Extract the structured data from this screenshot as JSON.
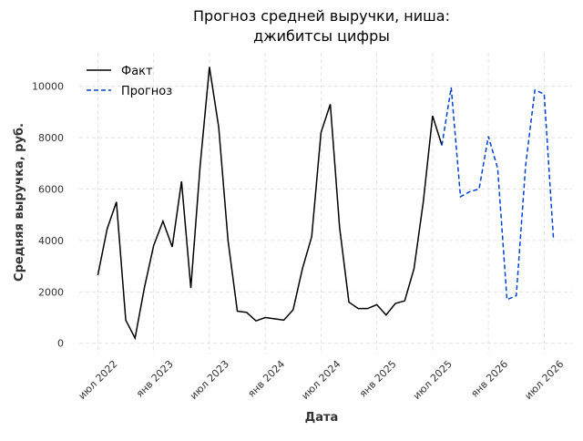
{
  "chart_data": {
    "type": "line",
    "title": [
      "Прогноз средней выручки, ниша:",
      "джибитсы цифры"
    ],
    "x_label": "Дата",
    "y_label": "Средняя выручка, руб.",
    "x": [
      "2022-07",
      "2022-08",
      "2022-09",
      "2022-10",
      "2022-11",
      "2022-12",
      "2023-01",
      "2023-02",
      "2023-03",
      "2023-04",
      "2023-05",
      "2023-06",
      "2023-07",
      "2023-08",
      "2023-09",
      "2023-10",
      "2023-11",
      "2023-12",
      "2024-01",
      "2024-02",
      "2024-03",
      "2024-04",
      "2024-05",
      "2024-06",
      "2024-07",
      "2024-08",
      "2024-09",
      "2024-10",
      "2024-11",
      "2024-12",
      "2025-01",
      "2025-02",
      "2025-03",
      "2025-04",
      "2025-05",
      "2025-06",
      "2025-07",
      "2025-08",
      "2025-09",
      "2025-10",
      "2025-11",
      "2025-12",
      "2026-01",
      "2026-02",
      "2026-03",
      "2026-04",
      "2026-05",
      "2026-06",
      "2026-07",
      "2026-08"
    ],
    "series": [
      {
        "name": "Факт",
        "color": "#000000",
        "dash": false,
        "values": [
          2650,
          4450,
          5500,
          900,
          200,
          2150,
          3800,
          4750,
          3750,
          6300,
          2150,
          6900,
          10750,
          8400,
          4000,
          1250,
          1200,
          870,
          1000,
          950,
          900,
          1300,
          2900,
          4150,
          8200,
          9300,
          4500,
          1600,
          1350,
          1350,
          1500,
          1100,
          1550,
          1650,
          2900,
          5500,
          8850,
          7700,
          null,
          null,
          null,
          null,
          null,
          null,
          null,
          null,
          null,
          null,
          null,
          null
        ]
      },
      {
        "name": "Прогноз",
        "color": "#0044cc",
        "dash": true,
        "values": [
          null,
          null,
          null,
          null,
          null,
          null,
          null,
          null,
          null,
          null,
          null,
          null,
          null,
          null,
          null,
          null,
          null,
          null,
          null,
          null,
          null,
          null,
          null,
          null,
          null,
          null,
          null,
          null,
          null,
          null,
          null,
          null,
          null,
          null,
          null,
          null,
          null,
          7700,
          9950,
          5700,
          5900,
          6000,
          8050,
          6800,
          1700,
          1850,
          6900,
          9850,
          9700,
          4050
        ]
      }
    ],
    "xlim": [
      "2022-05",
      "2026-10"
    ],
    "xticks": [
      {
        "value": "2022-07",
        "label": "июл 2022"
      },
      {
        "value": "2023-01",
        "label": "янв 2023"
      },
      {
        "value": "2023-07",
        "label": "июл 2023"
      },
      {
        "value": "2024-01",
        "label": "янв 2024"
      },
      {
        "value": "2024-07",
        "label": "июл 2024"
      },
      {
        "value": "2025-01",
        "label": "янв 2025"
      },
      {
        "value": "2025-07",
        "label": "июл 2025"
      },
      {
        "value": "2026-01",
        "label": "янв 2026"
      },
      {
        "value": "2026-07",
        "label": "июл 2026"
      }
    ],
    "ylim": [
      -400,
      11300
    ],
    "yticks": [
      0,
      2000,
      4000,
      6000,
      8000,
      10000
    ],
    "grid": true,
    "legend": "upper left"
  }
}
